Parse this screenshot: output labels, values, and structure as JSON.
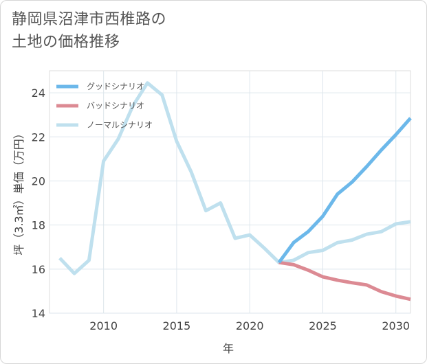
{
  "title_line1": "静岡県沼津市西椎路の",
  "title_line2": "土地の価格推移",
  "chart_data": {
    "type": "line",
    "xlabel": "年",
    "ylabel": "坪（3.3㎡）単価（万円）",
    "xlim": [
      2006.3,
      2031
    ],
    "ylim": [
      14,
      25
    ],
    "xticks": [
      2010,
      2015,
      2020,
      2025,
      2030
    ],
    "yticks": [
      14,
      16,
      18,
      20,
      22,
      24
    ],
    "grid": true,
    "legend_position": "top-left",
    "series": [
      {
        "name": "グッドシナリオ",
        "color": "#6cb8ea",
        "x": [
          2022,
          2023,
          2024,
          2025,
          2026,
          2027,
          2028,
          2029,
          2030,
          2031
        ],
        "values": [
          16.3,
          17.2,
          17.7,
          18.4,
          19.4,
          19.95,
          20.65,
          21.4,
          22.1,
          22.85
        ]
      },
      {
        "name": "バッドシナリオ",
        "color": "#dc8a93",
        "x": [
          2022,
          2023,
          2024,
          2025,
          2026,
          2027,
          2028,
          2029,
          2030,
          2031
        ],
        "values": [
          16.3,
          16.2,
          15.95,
          15.65,
          15.5,
          15.38,
          15.28,
          14.98,
          14.78,
          14.63
        ]
      },
      {
        "name": "ノーマルシナリオ",
        "color": "#bfe0ee",
        "x": [
          2007,
          2008,
          2009,
          2010,
          2011,
          2012,
          2013,
          2014,
          2015,
          2016,
          2017,
          2018,
          2019,
          2020,
          2021,
          2022,
          2023,
          2024,
          2025,
          2026,
          2027,
          2028,
          2029,
          2030,
          2031
        ],
        "values": [
          16.5,
          15.8,
          16.4,
          20.9,
          21.9,
          23.4,
          24.45,
          23.9,
          21.8,
          20.4,
          18.65,
          19.0,
          17.4,
          17.55,
          16.95,
          16.3,
          16.4,
          16.75,
          16.85,
          17.2,
          17.32,
          17.58,
          17.7,
          18.05,
          18.15
        ]
      }
    ]
  }
}
